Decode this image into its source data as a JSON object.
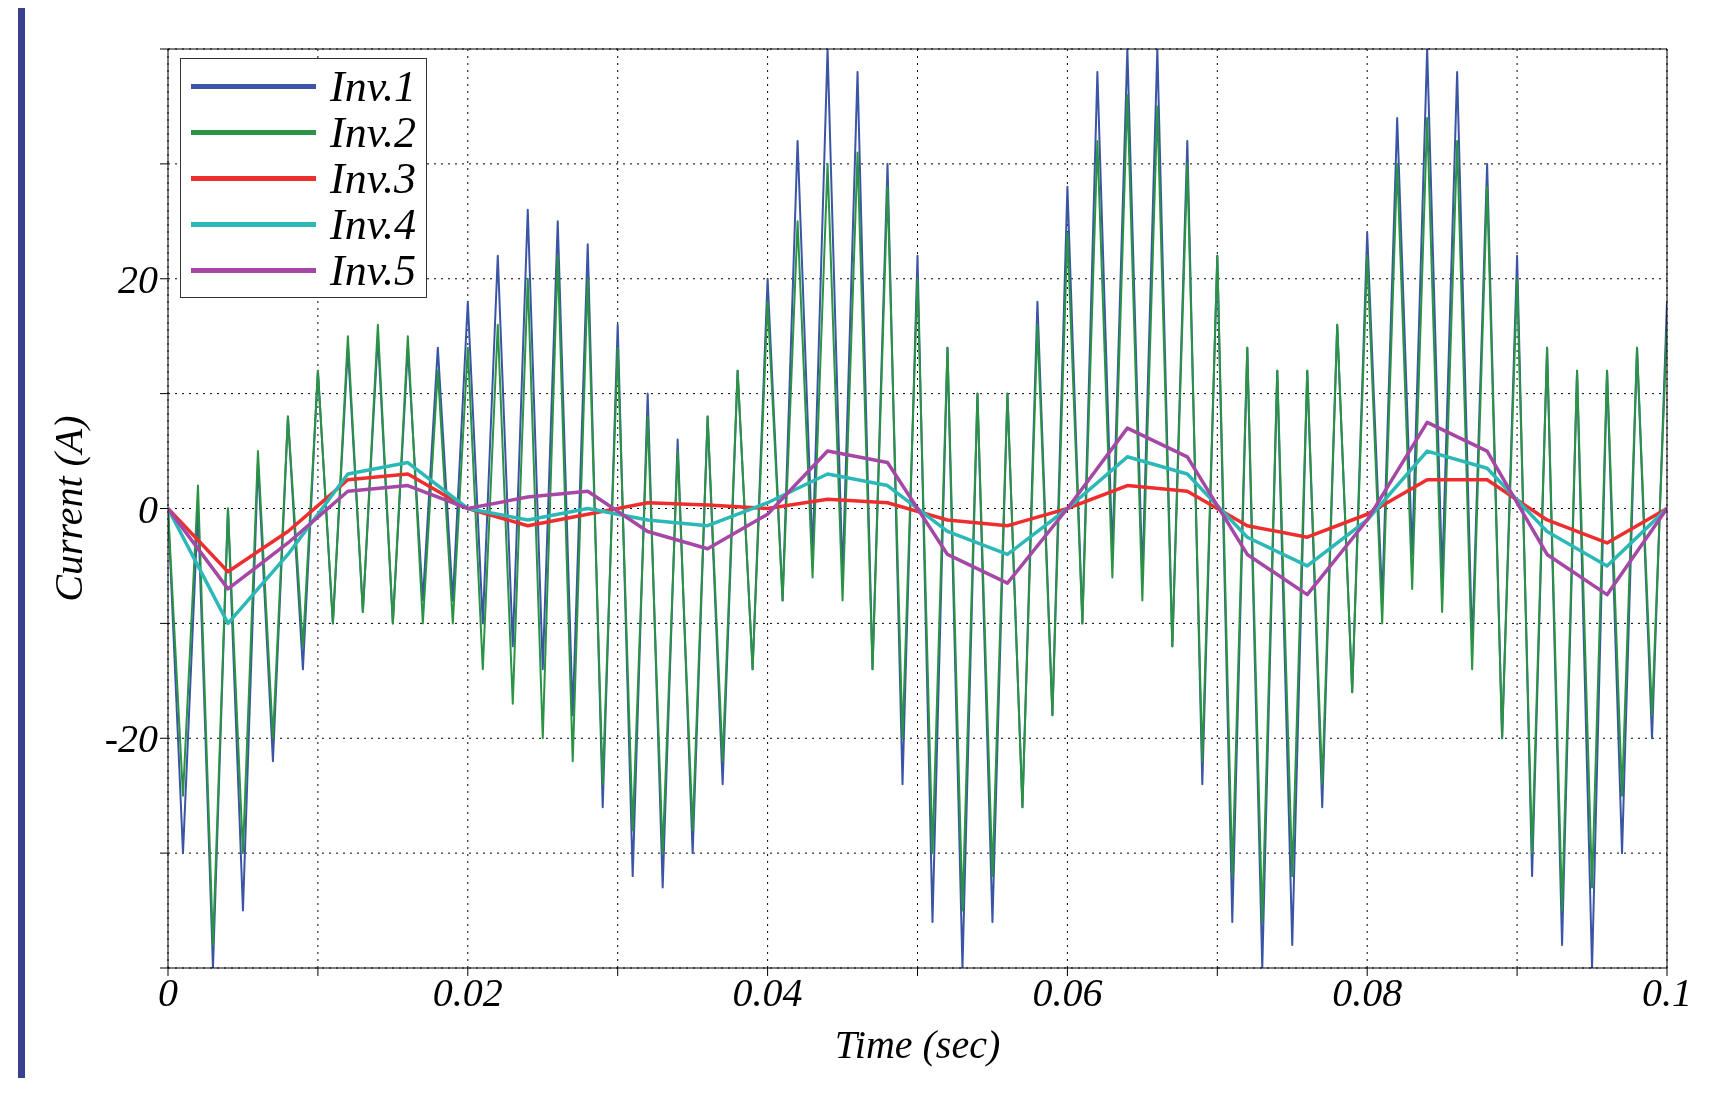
{
  "chart_data": {
    "type": "line",
    "xlabel": "Time (sec)",
    "ylabel": "Current (A)",
    "x": [
      0,
      0.001,
      0.002,
      0.003,
      0.004,
      0.005,
      0.006,
      0.007,
      0.008,
      0.009,
      0.01,
      0.011,
      0.012,
      0.013,
      0.014,
      0.015,
      0.016,
      0.017,
      0.018,
      0.019,
      0.02,
      0.021,
      0.022,
      0.023,
      0.024,
      0.025,
      0.026,
      0.027,
      0.028,
      0.029,
      0.03,
      0.031,
      0.032,
      0.033,
      0.034,
      0.035,
      0.036,
      0.037,
      0.038,
      0.039,
      0.04,
      0.041,
      0.042,
      0.043,
      0.044,
      0.045,
      0.046,
      0.047,
      0.048,
      0.049,
      0.05,
      0.051,
      0.052,
      0.053,
      0.054,
      0.055,
      0.056,
      0.057,
      0.058,
      0.059,
      0.06,
      0.061,
      0.062,
      0.063,
      0.064,
      0.065,
      0.066,
      0.067,
      0.068,
      0.069,
      0.07,
      0.071,
      0.072,
      0.073,
      0.074,
      0.075,
      0.076,
      0.077,
      0.078,
      0.079,
      0.08,
      0.081,
      0.082,
      0.083,
      0.084,
      0.085,
      0.086,
      0.087,
      0.088,
      0.089,
      0.09,
      0.091,
      0.092,
      0.093,
      0.094,
      0.095,
      0.096,
      0.097,
      0.098,
      0.099,
      0.1
    ],
    "series": [
      {
        "name": "Inv.1",
        "color": "#3b55a5",
        "values": [
          0,
          -30,
          0,
          -40,
          0,
          -35,
          4,
          -22,
          8,
          -14,
          12,
          -10,
          14,
          -9,
          15,
          -10,
          14,
          -8,
          14,
          -8,
          18,
          -10,
          22,
          -12,
          26,
          -14,
          25,
          -18,
          23,
          -26,
          16,
          -32,
          10,
          -33,
          6,
          -30,
          8,
          -24,
          12,
          -14,
          20,
          -8,
          32,
          -4,
          40,
          -6,
          38,
          -14,
          30,
          -24,
          22,
          -36,
          14,
          -40,
          10,
          -36,
          10,
          -26,
          18,
          -18,
          28,
          -10,
          38,
          -4,
          40,
          -6,
          40,
          -12,
          32,
          -24,
          22,
          -36,
          14,
          -40,
          12,
          -38,
          12,
          -26,
          16,
          -16,
          24,
          -8,
          34,
          -4,
          40,
          -6,
          38,
          -12,
          30,
          -20,
          22,
          -32,
          14,
          -38,
          12,
          -40,
          12,
          -30,
          14,
          -20,
          18
        ]
      },
      {
        "name": "Inv.2",
        "color": "#2a9444",
        "values": [
          0,
          -25,
          2,
          -38,
          0,
          -30,
          5,
          -20,
          8,
          -12,
          12,
          -10,
          15,
          -9,
          16,
          -10,
          15,
          -10,
          12,
          -10,
          14,
          -14,
          16,
          -17,
          20,
          -20,
          22,
          -22,
          20,
          -24,
          14,
          -28,
          8,
          -30,
          5,
          -28,
          8,
          -22,
          12,
          -14,
          18,
          -8,
          25,
          -6,
          30,
          -8,
          31,
          -14,
          28,
          -20,
          20,
          -30,
          14,
          -35,
          10,
          -32,
          10,
          -26,
          16,
          -18,
          24,
          -10,
          32,
          -6,
          36,
          -8,
          35,
          -12,
          30,
          -22,
          22,
          -32,
          14,
          -36,
          12,
          -32,
          12,
          -24,
          16,
          -16,
          22,
          -10,
          30,
          -7,
          34,
          -9,
          32,
          -14,
          28,
          -20,
          20,
          -30,
          14,
          -35,
          12,
          -33,
          12,
          -25,
          14,
          -18,
          16
        ]
      },
      {
        "name": "Inv.3",
        "color": "#ee2e2e",
        "x": [
          0,
          0.004,
          0.008,
          0.012,
          0.016,
          0.02,
          0.024,
          0.028,
          0.032,
          0.036,
          0.04,
          0.044,
          0.048,
          0.052,
          0.056,
          0.06,
          0.064,
          0.068,
          0.072,
          0.076,
          0.08,
          0.084,
          0.088,
          0.092,
          0.096,
          0.1
        ],
        "values": [
          0,
          -5.5,
          -2,
          2.5,
          3,
          0,
          -1.5,
          -0.5,
          0.5,
          0.3,
          0,
          0.8,
          0.5,
          -1,
          -1.5,
          0,
          2,
          1.5,
          -1.5,
          -2.5,
          -0.5,
          2.5,
          2.5,
          -1,
          -3,
          0
        ]
      },
      {
        "name": "Inv.4",
        "color": "#2db8b8",
        "x": [
          0,
          0.004,
          0.008,
          0.012,
          0.016,
          0.02,
          0.024,
          0.028,
          0.032,
          0.036,
          0.04,
          0.044,
          0.048,
          0.052,
          0.056,
          0.06,
          0.064,
          0.068,
          0.072,
          0.076,
          0.08,
          0.084,
          0.088,
          0.092,
          0.096,
          0.1
        ],
        "values": [
          0,
          -10,
          -4,
          3,
          4,
          0,
          -1,
          0,
          -1,
          -1.5,
          0.5,
          3,
          2,
          -2,
          -4,
          0,
          4.5,
          3,
          -2.5,
          -5,
          -1,
          5,
          3.5,
          -2,
          -5,
          0
        ]
      },
      {
        "name": "Inv.5",
        "color": "#a548a5",
        "x": [
          0,
          0.004,
          0.008,
          0.012,
          0.016,
          0.02,
          0.024,
          0.028,
          0.032,
          0.036,
          0.04,
          0.044,
          0.048,
          0.052,
          0.056,
          0.06,
          0.064,
          0.068,
          0.072,
          0.076,
          0.08,
          0.084,
          0.088,
          0.092,
          0.096,
          0.1
        ],
        "values": [
          0,
          -7,
          -3,
          1.5,
          2,
          0,
          1,
          1.5,
          -2,
          -3.5,
          -0.5,
          5,
          4,
          -4,
          -6.5,
          0,
          7,
          4.5,
          -4,
          -7.5,
          -1,
          7.5,
          5,
          -4,
          -7.5,
          0
        ]
      }
    ],
    "xlim": [
      0,
      0.1
    ],
    "xticks": [
      0,
      {
        "value": 0.01,
        "label": null
      },
      0.02,
      {
        "value": 0.03,
        "label": null
      },
      0.04,
      {
        "value": 0.05,
        "label": null
      },
      0.06,
      {
        "value": 0.07,
        "label": null
      },
      0.08,
      {
        "value": 0.09,
        "label": null
      },
      0.1
    ],
    "ylim": [
      -40,
      40
    ],
    "yticks": [
      {
        "value": -40,
        "label": null
      },
      {
        "value": -30,
        "label": null
      },
      -20,
      {
        "value": -10,
        "label": null
      },
      0,
      {
        "value": 10,
        "label": null
      },
      20,
      {
        "value": 30,
        "label": null
      },
      {
        "value": 40,
        "label": null
      }
    ],
    "grid": true,
    "legend": "top left",
    "marker": "none",
    "line_style": "solid"
  }
}
